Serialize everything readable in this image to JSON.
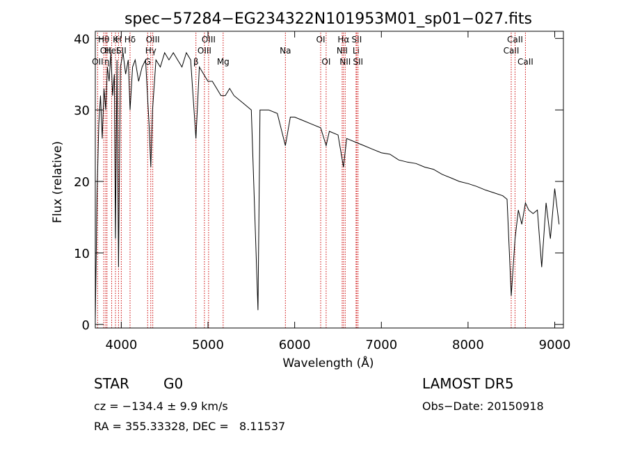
{
  "chart_data": {
    "type": "line",
    "title": "spec−57284−EG234322N101953M01_sp01−027.fits",
    "xlabel": "Wavelength (Å)",
    "ylabel": "Flux (relative)",
    "xlim": [
      3700,
      9100
    ],
    "ylim": [
      -0.5,
      41
    ],
    "x_ticks": [
      4000,
      5000,
      6000,
      7000,
      8000,
      9000
    ],
    "y_ticks": [
      0,
      10,
      20,
      30,
      40
    ],
    "grid": false,
    "legend": "none",
    "line_color": "#000000",
    "marker_color": "#cc0000",
    "series": [
      {
        "x": [
          3700,
          3720,
          3740,
          3760,
          3780,
          3800,
          3820,
          3840,
          3860,
          3880,
          3900,
          3920,
          3933,
          3950,
          3968,
          3990,
          4020,
          4050,
          4080,
          4101,
          4130,
          4160,
          4200,
          4240,
          4280,
          4320,
          4340,
          4360,
          4400,
          4450,
          4500,
          4550,
          4600,
          4650,
          4700,
          4750,
          4800,
          4861,
          4900,
          4950,
          5000,
          5050,
          5100,
          5150,
          5200,
          5250,
          5300,
          5400,
          5500,
          5577,
          5600,
          5700,
          5800,
          5893,
          5950,
          6000,
          6100,
          6200,
          6300,
          6363,
          6400,
          6500,
          6563,
          6600,
          6700,
          6800,
          6900,
          7000,
          7100,
          7200,
          7300,
          7400,
          7500,
          7600,
          7700,
          7800,
          7900,
          8000,
          8100,
          8200,
          8300,
          8400,
          8450,
          8498,
          8542,
          8580,
          8620,
          8662,
          8700,
          8750,
          8800,
          8850,
          8900,
          8950,
          9000,
          9050
        ],
        "y": [
          0.5,
          18,
          28,
          32,
          26,
          33,
          30,
          36,
          34,
          38,
          32,
          35,
          12,
          37,
          8,
          36,
          38,
          35,
          37,
          30,
          36,
          37,
          34,
          36,
          37,
          28,
          22,
          30,
          37,
          36,
          38,
          37,
          38,
          37,
          36,
          38,
          37,
          26,
          36,
          35,
          34,
          34,
          33,
          32,
          32,
          33,
          32,
          31,
          30,
          2,
          30,
          30,
          29.5,
          25,
          29,
          29,
          28.5,
          28,
          27.5,
          25,
          27,
          26.5,
          22,
          26,
          25.5,
          25,
          24.5,
          24,
          23.8,
          23,
          22.7,
          22.5,
          22,
          21.7,
          21,
          20.5,
          20,
          19.7,
          19.3,
          18.8,
          18.4,
          18,
          17.5,
          4,
          12,
          16,
          14,
          17,
          16,
          15.5,
          16,
          8,
          17,
          12,
          19,
          14
        ]
      }
    ],
    "line_markers": [
      {
        "x": 3727,
        "row": 2,
        "label": "OII"
      },
      {
        "x": 3798,
        "row": 0,
        "label": "Hθ"
      },
      {
        "x": 3820,
        "row": 1,
        "label": "OII"
      },
      {
        "x": 3835,
        "row": 2,
        "label": "η"
      },
      {
        "x": 3889,
        "row": 1,
        "label": "HeI"
      },
      {
        "x": 3933,
        "row": 0,
        "label": "K"
      },
      {
        "x": 3968,
        "row": 0,
        "label": "H"
      },
      {
        "x": 4000,
        "row": 1,
        "label": "SII"
      },
      {
        "x": 4101,
        "row": 0,
        "label": "Hδ"
      },
      {
        "x": 4304,
        "row": 2,
        "label": "G"
      },
      {
        "x": 4340,
        "row": 1,
        "label": "Hγ"
      },
      {
        "x": 4363,
        "row": 0,
        "label": "OIII"
      },
      {
        "x": 4861,
        "row": 2,
        "label": "β"
      },
      {
        "x": 4959,
        "row": 1,
        "label": "OIII"
      },
      {
        "x": 5007,
        "row": 0,
        "label": "OIII"
      },
      {
        "x": 5175,
        "row": 2,
        "label": "Mg"
      },
      {
        "x": 5893,
        "row": 1,
        "label": "Na"
      },
      {
        "x": 6300,
        "row": 0,
        "label": "OI"
      },
      {
        "x": 6363,
        "row": 2,
        "label": "OI"
      },
      {
        "x": 6548,
        "row": 1,
        "label": "NII"
      },
      {
        "x": 6563,
        "row": 0,
        "label": "Hα"
      },
      {
        "x": 6583,
        "row": 2,
        "label": "NII"
      },
      {
        "x": 6708,
        "row": 1,
        "label": "Li"
      },
      {
        "x": 6716,
        "row": 0,
        "label": "SII"
      },
      {
        "x": 6731,
        "row": 2,
        "label": "SII"
      },
      {
        "x": 8498,
        "row": 1,
        "label": "CaII"
      },
      {
        "x": 8542,
        "row": 0,
        "label": "CaII"
      },
      {
        "x": 8662,
        "row": 2,
        "label": "CaII"
      }
    ]
  },
  "info": {
    "object_class": "STAR",
    "subclass": "G0",
    "survey": "LAMOST DR5",
    "velocity": "cz = −134.4 ± 9.9 km/s",
    "obs_date": "Obs−Date: 20150918",
    "coordinates": "RA = 355.33328, DEC =   8.11537"
  }
}
